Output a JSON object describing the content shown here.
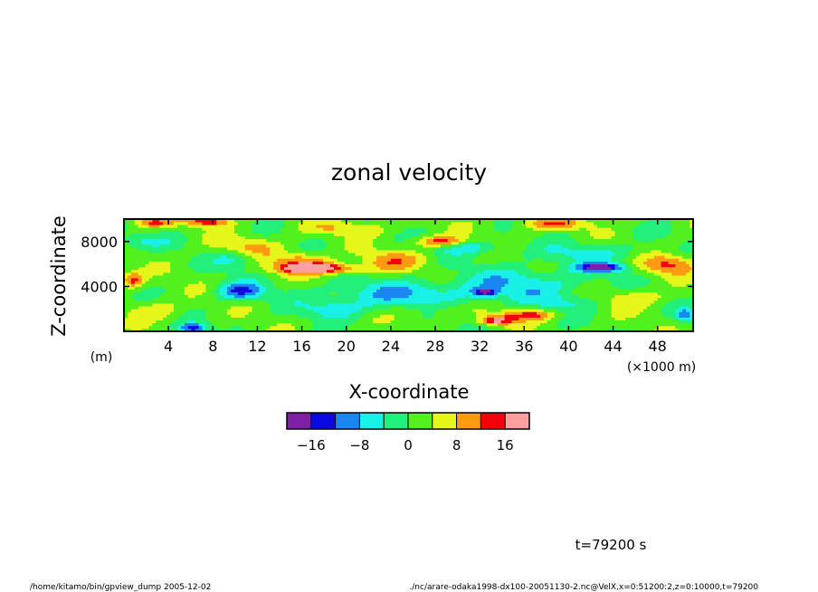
{
  "chart_data": {
    "type": "heatmap",
    "title": "zonal velocity",
    "xlabel": "X-coordinate",
    "ylabel": "Z-coordinate",
    "x_unit": "(×1000 m)",
    "y_unit": "(m)",
    "xlim": [
      0,
      51.2
    ],
    "ylim": [
      0,
      10000
    ],
    "xticks": [
      4,
      8,
      12,
      16,
      20,
      24,
      28,
      32,
      36,
      40,
      44,
      48
    ],
    "yticks": [
      4000,
      8000
    ],
    "colorbar": {
      "levels": [
        -20,
        -16,
        -12,
        -8,
        -4,
        0,
        4,
        8,
        12,
        16,
        20
      ],
      "colors": [
        "#7f1fa6",
        "#0a0ae0",
        "#1a87f0",
        "#19f0e6",
        "#23f07a",
        "#52f01c",
        "#e6f51a",
        "#ff9a12",
        "#f5000a",
        "#ff9f9f"
      ],
      "tick_labels": [
        -16,
        -8,
        0,
        8,
        16
      ]
    },
    "features": [
      {
        "x": 2.5,
        "z": 9700,
        "value": 12,
        "rx": 1.8,
        "rz": 450
      },
      {
        "x": 7.5,
        "z": 9800,
        "value": 13,
        "rx": 2.0,
        "rz": 400
      },
      {
        "x": 17.5,
        "z": 5600,
        "value": 18,
        "rx": 3.5,
        "rz": 450
      },
      {
        "x": 16.0,
        "z": 6200,
        "value": 11,
        "rx": 2.5,
        "rz": 800
      },
      {
        "x": 28.5,
        "z": 8000,
        "value": 13,
        "rx": 2.2,
        "rz": 500
      },
      {
        "x": 33.5,
        "z": 1000,
        "value": 16,
        "rx": 1.5,
        "rz": 400
      },
      {
        "x": 36.5,
        "z": 1500,
        "value": 12,
        "rx": 2.5,
        "rz": 500
      },
      {
        "x": 0.8,
        "z": 4600,
        "value": 12,
        "rx": 1.0,
        "rz": 700
      },
      {
        "x": 38.5,
        "z": 9600,
        "value": 10,
        "rx": 3.0,
        "rz": 500
      },
      {
        "x": 49.0,
        "z": 6000,
        "value": 11,
        "rx": 2.5,
        "rz": 900
      },
      {
        "x": 24.0,
        "z": 6300,
        "value": 8,
        "rx": 3.0,
        "rz": 900
      },
      {
        "x": 11.0,
        "z": 7500,
        "value": 7,
        "rx": 3.0,
        "rz": 900
      },
      {
        "x": 43.0,
        "z": 5700,
        "value": -18,
        "rx": 2.2,
        "rz": 400
      },
      {
        "x": 10.5,
        "z": 3600,
        "value": -14,
        "rx": 2.0,
        "rz": 800
      },
      {
        "x": 32.5,
        "z": 3500,
        "value": -15,
        "rx": 1.0,
        "rz": 350
      },
      {
        "x": 6.2,
        "z": 300,
        "value": -16,
        "rx": 1.2,
        "rz": 450
      },
      {
        "x": 25.0,
        "z": 3300,
        "value": -9,
        "rx": 7.0,
        "rz": 1200
      },
      {
        "x": 36.0,
        "z": 4300,
        "value": -8,
        "rx": 6.0,
        "rz": 1500
      },
      {
        "x": 42.0,
        "z": 7000,
        "value": -6,
        "rx": 5.0,
        "rz": 900
      },
      {
        "x": 1.5,
        "z": 8000,
        "value": -6,
        "rx": 2.5,
        "rz": 600
      },
      {
        "x": 50.5,
        "z": 1500,
        "value": -11,
        "rx": 1.0,
        "rz": 600
      },
      {
        "x": 10.0,
        "z": 6500,
        "value": -7,
        "rx": 2.0,
        "rz": 900
      },
      {
        "x": 31.0,
        "z": 7500,
        "value": -8,
        "rx": 3.0,
        "rz": 600
      },
      {
        "x": 19.0,
        "z": 2000,
        "value": -7,
        "rx": 3.0,
        "rz": 800
      },
      {
        "x": 46.0,
        "z": 3000,
        "value": 6,
        "rx": 3.0,
        "rz": 900
      },
      {
        "x": 28.0,
        "z": 2000,
        "value": 4,
        "rx": 3.0,
        "rz": 800
      },
      {
        "x": 3.0,
        "z": 2000,
        "value": 5,
        "rx": 2.5,
        "rz": 900
      },
      {
        "x": 40.0,
        "z": 2500,
        "value": -5,
        "rx": 3.0,
        "rz": 800
      },
      {
        "x": 20.0,
        "z": 9200,
        "value": 6,
        "rx": 4.0,
        "rz": 600
      }
    ]
  },
  "footer": {
    "time_label": "t=79200 s",
    "left_path": "/home/kitamo/bin/gpview_dump  2005-12-02",
    "right_path": "./nc/arare-odaka1998-dx100-20051130-2.nc@VelX,x=0:51200:2,z=0:10000,t=79200"
  }
}
